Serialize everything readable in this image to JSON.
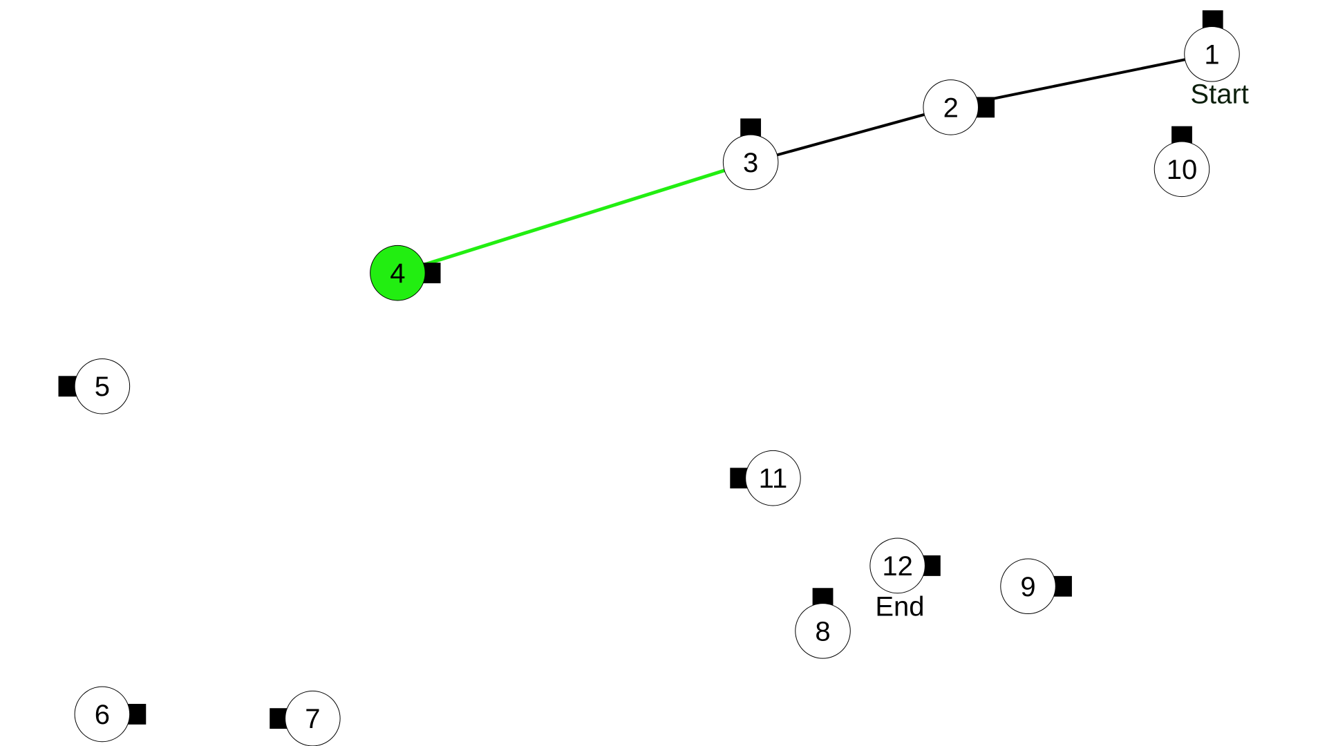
{
  "colors": {
    "background": "#ffffff",
    "edge": "#000000",
    "active_edge": "#22ee11",
    "active_node": "#22ee11",
    "start_label": "#0c1f0c",
    "end_label": "#000000"
  },
  "nodes": [
    {
      "id": 1,
      "label": "1",
      "note": "Start"
    },
    {
      "id": 2,
      "label": "2"
    },
    {
      "id": 3,
      "label": "3"
    },
    {
      "id": 4,
      "label": "4",
      "active": true
    },
    {
      "id": 5,
      "label": "5"
    },
    {
      "id": 6,
      "label": "6"
    },
    {
      "id": 7,
      "label": "7"
    },
    {
      "id": 8,
      "label": "8"
    },
    {
      "id": 9,
      "label": "9"
    },
    {
      "id": 10,
      "label": "10"
    },
    {
      "id": 11,
      "label": "11"
    },
    {
      "id": 12,
      "label": "12",
      "note": "End"
    }
  ],
  "path": [
    {
      "from": 1,
      "to": 2,
      "state": "visited"
    },
    {
      "from": 2,
      "to": 3,
      "state": "visited"
    },
    {
      "from": 3,
      "to": 4,
      "state": "current"
    }
  ]
}
